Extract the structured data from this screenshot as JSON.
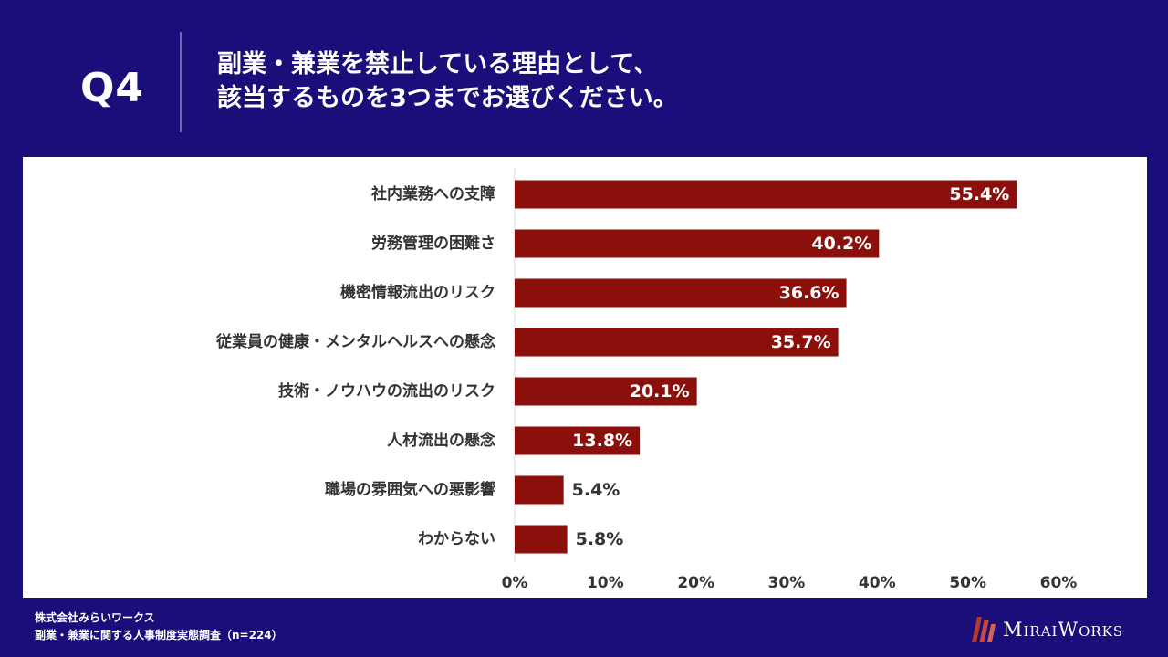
{
  "header": {
    "q_label": "Q4",
    "question_line1": "副業・兼業を禁止している理由として、",
    "question_line2": "該当するものを3つまでお選びください。"
  },
  "chart_data": {
    "type": "bar",
    "orientation": "horizontal",
    "categories": [
      "社内業務への支障",
      "労務管理の困難さ",
      "機密情報流出のリスク",
      "従業員の健康・メンタルヘルスへの懸念",
      "技術・ノウハウの流出のリスク",
      "人材流出の懸念",
      "職場の雰囲気への悪影響",
      "わからない"
    ],
    "values": [
      55.4,
      40.2,
      36.6,
      35.7,
      20.1,
      13.8,
      5.4,
      5.8
    ],
    "value_labels": [
      "55.4%",
      "40.2%",
      "36.6%",
      "35.7%",
      "20.1%",
      "13.8%",
      "5.4%",
      "5.8%"
    ],
    "xlim": [
      0,
      60
    ],
    "xticks": [
      0,
      10,
      20,
      30,
      40,
      50,
      60
    ],
    "xtick_labels": [
      "0%",
      "10%",
      "20%",
      "30%",
      "40%",
      "50%",
      "60%"
    ],
    "bar_color": "#8b0f0a",
    "grid": false,
    "legend": "none"
  },
  "footer": {
    "company": "株式会社みらいワークス",
    "survey": "副業・兼業に関する人事制度実態調査（n=224）",
    "logo_text": "MiraiWorks"
  },
  "colors": {
    "background": "#1a0f7a",
    "bar": "#8b0f0a",
    "panel": "#ffffff",
    "text_dark": "#333333"
  }
}
